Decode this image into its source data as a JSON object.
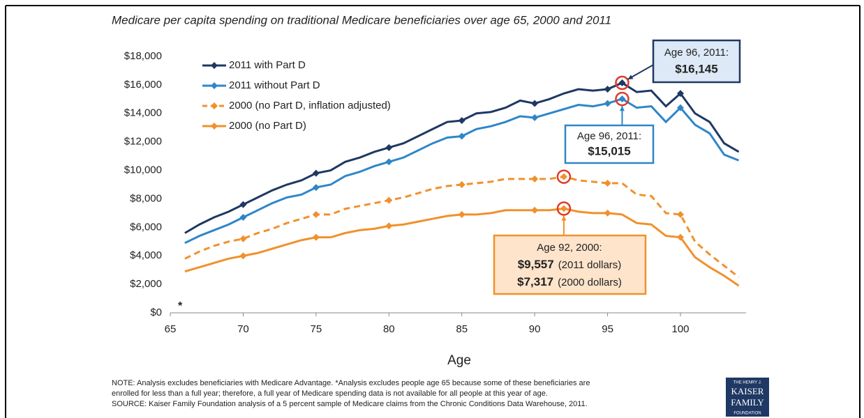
{
  "chart_data": {
    "type": "line",
    "title": "Medicare per capita spending on traditional Medicare beneficiaries over age 65, 2000 and 2011",
    "x_label": "Age",
    "x": [
      66,
      67,
      68,
      69,
      70,
      71,
      72,
      73,
      74,
      75,
      76,
      77,
      78,
      79,
      80,
      81,
      82,
      83,
      84,
      85,
      86,
      87,
      88,
      89,
      90,
      91,
      92,
      93,
      94,
      95,
      96,
      97,
      98,
      99,
      100,
      101,
      102,
      103,
      104
    ],
    "series": [
      {
        "name": "2011 with Part D",
        "color": "#1f3864",
        "dashed": false,
        "values": [
          5600,
          6200,
          6700,
          7100,
          7600,
          8100,
          8600,
          9000,
          9300,
          9800,
          10000,
          10600,
          10900,
          11300,
          11600,
          11900,
          12400,
          12900,
          13400,
          13500,
          14000,
          14100,
          14400,
          14900,
          14700,
          15000,
          15400,
          15700,
          15600,
          15700,
          16145,
          15500,
          15600,
          14500,
          15400,
          14000,
          13400,
          11900,
          11300
        ]
      },
      {
        "name": "2011 without Part D",
        "color": "#2e86c8",
        "dashed": false,
        "values": [
          4900,
          5400,
          5800,
          6200,
          6700,
          7200,
          7700,
          8100,
          8300,
          8800,
          9000,
          9600,
          9900,
          10300,
          10600,
          10900,
          11400,
          11900,
          12300,
          12400,
          12900,
          13100,
          13400,
          13800,
          13700,
          14000,
          14300,
          14600,
          14500,
          14700,
          15015,
          14400,
          14500,
          13400,
          14400,
          13200,
          12600,
          11100,
          10700
        ]
      },
      {
        "name": "2000 (no Part D, inflation adjusted)",
        "color": "#f0912c",
        "dashed": true,
        "values": [
          3800,
          4300,
          4700,
          5000,
          5200,
          5600,
          5900,
          6300,
          6600,
          6900,
          6900,
          7300,
          7500,
          7700,
          7900,
          8100,
          8400,
          8700,
          8900,
          9000,
          9100,
          9200,
          9400,
          9400,
          9400,
          9400,
          9557,
          9300,
          9200,
          9100,
          9100,
          8300,
          8200,
          7000,
          6900,
          5000,
          4100,
          3300,
          2500
        ]
      },
      {
        "name": "2000 (no Part D)",
        "color": "#f0912c",
        "dashed": false,
        "values": [
          2900,
          3200,
          3500,
          3800,
          4000,
          4200,
          4500,
          4800,
          5100,
          5300,
          5300,
          5600,
          5800,
          5900,
          6100,
          6200,
          6400,
          6600,
          6800,
          6900,
          6900,
          7000,
          7200,
          7200,
          7200,
          7200,
          7317,
          7100,
          7000,
          7000,
          6900,
          6300,
          6200,
          5400,
          5300,
          3900,
          3200,
          2600,
          1900
        ]
      }
    ],
    "xlim": [
      65,
      104.5
    ],
    "xticks": [
      65,
      70,
      75,
      80,
      85,
      90,
      95,
      100
    ],
    "ylim": [
      0,
      18000
    ],
    "yticks": [
      {
        "value": 0,
        "label": "$0"
      },
      {
        "value": 2000,
        "label": "$2,000"
      },
      {
        "value": 4000,
        "label": "$4,000"
      },
      {
        "value": 6000,
        "label": "$6,000"
      },
      {
        "value": 8000,
        "label": "$8,000"
      },
      {
        "value": 10000,
        "label": "$10,000"
      },
      {
        "value": 12000,
        "label": "$12,000"
      },
      {
        "value": 14000,
        "label": "$14,000"
      },
      {
        "value": 16000,
        "label": "$16,000"
      },
      {
        "value": 18000,
        "label": "$18,000"
      }
    ],
    "asterisk": "*",
    "annotations": [
      {
        "heading": "Age 96, 2011:",
        "value": "$16,145"
      },
      {
        "heading": "Age 96, 2011:",
        "value": "$15,015"
      },
      {
        "heading": "Age 92, 2000:",
        "lines": [
          {
            "value": "$9,557",
            "unit": "(2011 dollars)"
          },
          {
            "value": "$7,317",
            "unit": "(2000 dollars)"
          }
        ]
      }
    ],
    "notes": [
      "NOTE: Analysis excludes beneficiaries with Medicare Advantage. *Analysis excludes people age 65 because some of these beneficiaries are",
      "enrolled for less than a full year; therefore, a full year of Medicare spending data is not available for all people at this year of age.",
      "SOURCE: Kaiser Family Foundation analysis of a 5 percent sample of Medicare claims from the Chronic Conditions Data Warehouse, 2011."
    ],
    "logo": [
      "THE HENRY J.",
      "KAISER",
      "FAMILY",
      "FOUNDATION"
    ]
  }
}
